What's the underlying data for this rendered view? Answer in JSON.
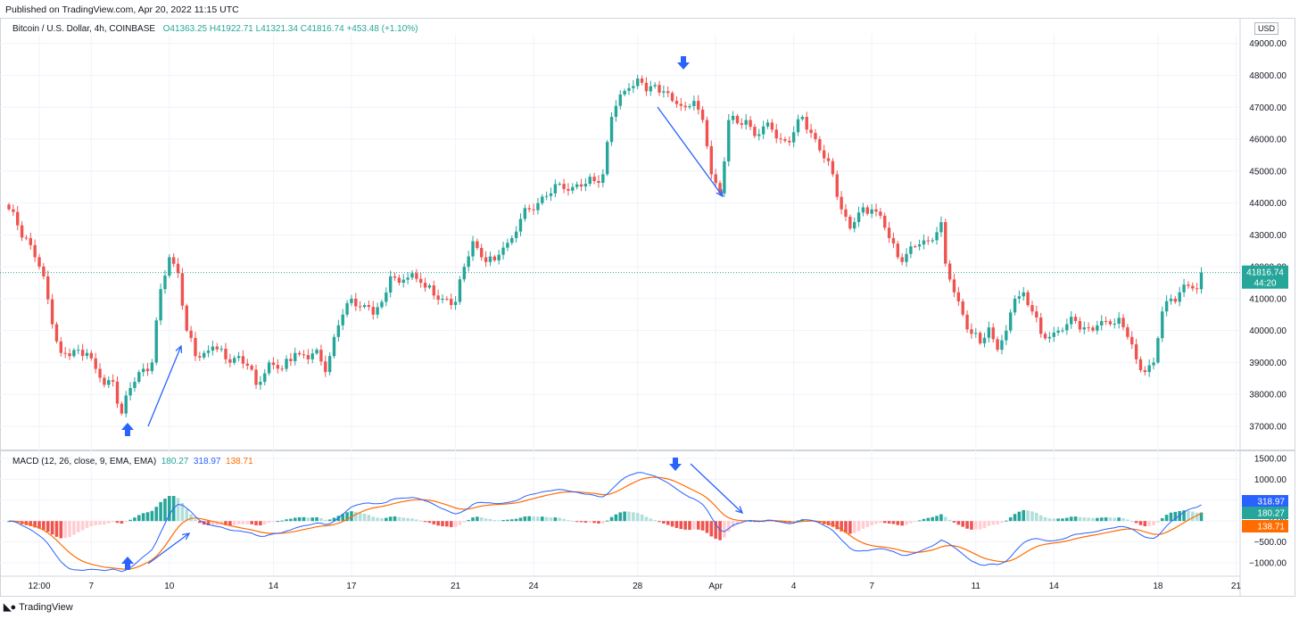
{
  "published": "Published on TradingView.com, Apr 20, 2022 11:15 UTC",
  "footer": {
    "brand": "TradingView"
  },
  "legend": {
    "symbol": "Bitcoin / U.S. Dollar, 4h, COINBASE",
    "o": "41363.25",
    "h": "41922.71",
    "l": "41321.34",
    "c": "41816.74",
    "change": "+453.48 (+1.10%)"
  },
  "macd_legend": {
    "title": "MACD (12, 26, close, 9, EMA, EMA)",
    "hist": "180.27",
    "macd": "318.97",
    "signal": "138.71"
  },
  "currency": "USD",
  "colors": {
    "up": "#26a69a",
    "down": "#ef5350",
    "macd": "#2962ff",
    "signal": "#ff6d00",
    "hist_up_light": "#b2dfdb",
    "hist_down_light": "#ffcdd2",
    "arrow": "#2962ff"
  },
  "chart_data": {
    "type": "candlestick",
    "price_axis": {
      "ticks": [
        37000,
        38000,
        39000,
        40000,
        41000,
        42000,
        43000,
        44000,
        45000,
        46000,
        47000,
        48000,
        49000
      ],
      "range": [
        36300,
        49300
      ]
    },
    "macd_axis": {
      "ticks": [
        -1000,
        -500,
        0,
        500,
        1000,
        1500
      ],
      "range": [
        -1300,
        1650
      ]
    },
    "x_ticks": [
      "12:00",
      "7",
      "10",
      "14",
      "17",
      "21",
      "24",
      "28",
      "Apr",
      "4",
      "7",
      "11",
      "14",
      "18",
      "21"
    ],
    "x_tick_bars": [
      7,
      19,
      37,
      61,
      79,
      103,
      121,
      145,
      163,
      181,
      199,
      223,
      241,
      265,
      283
    ],
    "last_price": {
      "value": "41816.74",
      "countdown": "44:20"
    },
    "price_anchors": [
      [
        0,
        43800
      ],
      [
        2,
        43300
      ],
      [
        4,
        42900
      ],
      [
        6,
        42300
      ],
      [
        8,
        41700
      ],
      [
        10,
        40200
      ],
      [
        12,
        39300
      ],
      [
        14,
        39200
      ],
      [
        16,
        39400
      ],
      [
        18,
        39300
      ],
      [
        20,
        38800
      ],
      [
        22,
        38300
      ],
      [
        24,
        38400
      ],
      [
        26,
        37400
      ],
      [
        28,
        38200
      ],
      [
        30,
        38700
      ],
      [
        33,
        39000
      ],
      [
        35,
        41300
      ],
      [
        37,
        42300
      ],
      [
        39,
        41800
      ],
      [
        41,
        40000
      ],
      [
        43,
        39200
      ],
      [
        45,
        39300
      ],
      [
        47,
        39500
      ],
      [
        50,
        39100
      ],
      [
        53,
        39200
      ],
      [
        55,
        38900
      ],
      [
        57,
        38300
      ],
      [
        60,
        39000
      ],
      [
        63,
        38800
      ],
      [
        66,
        39300
      ],
      [
        69,
        39100
      ],
      [
        71,
        39400
      ],
      [
        73,
        38700
      ],
      [
        75,
        39800
      ],
      [
        77,
        40500
      ],
      [
        79,
        41000
      ],
      [
        82,
        40800
      ],
      [
        84,
        40500
      ],
      [
        86,
        40900
      ],
      [
        88,
        41700
      ],
      [
        90,
        41500
      ],
      [
        93,
        41800
      ],
      [
        95,
        41500
      ],
      [
        98,
        41100
      ],
      [
        100,
        41000
      ],
      [
        103,
        40900
      ],
      [
        105,
        42000
      ],
      [
        107,
        42800
      ],
      [
        109,
        42300
      ],
      [
        112,
        42200
      ],
      [
        114,
        42600
      ],
      [
        116,
        42900
      ],
      [
        118,
        43500
      ],
      [
        120,
        43800
      ],
      [
        123,
        44200
      ],
      [
        125,
        44300
      ],
      [
        127,
        44600
      ],
      [
        130,
        44500
      ],
      [
        133,
        44600
      ],
      [
        137,
        44900
      ],
      [
        139,
        46700
      ],
      [
        141,
        47400
      ],
      [
        143,
        47600
      ],
      [
        145,
        47900
      ],
      [
        147,
        47500
      ],
      [
        149,
        47700
      ],
      [
        151,
        47500
      ],
      [
        153,
        47200
      ],
      [
        156,
        47000
      ],
      [
        158,
        47200
      ],
      [
        160,
        46600
      ],
      [
        162,
        44900
      ],
      [
        164,
        44300
      ],
      [
        166,
        46600
      ],
      [
        168,
        46500
      ],
      [
        170,
        46600
      ],
      [
        172,
        46100
      ],
      [
        174,
        46400
      ],
      [
        176,
        46300
      ],
      [
        178,
        46000
      ],
      [
        180,
        45900
      ],
      [
        183,
        46700
      ],
      [
        186,
        46000
      ],
      [
        188,
        45400
      ],
      [
        190,
        44900
      ],
      [
        192,
        43800
      ],
      [
        194,
        43200
      ],
      [
        196,
        43700
      ],
      [
        199,
        43800
      ],
      [
        201,
        43600
      ],
      [
        203,
        42900
      ],
      [
        205,
        42300
      ],
      [
        207,
        42400
      ],
      [
        210,
        42700
      ],
      [
        212,
        42800
      ],
      [
        215,
        43400
      ],
      [
        216,
        42100
      ],
      [
        218,
        41200
      ],
      [
        220,
        40500
      ],
      [
        222,
        39900
      ],
      [
        224,
        39600
      ],
      [
        226,
        40100
      ],
      [
        228,
        39400
      ],
      [
        230,
        40000
      ],
      [
        232,
        41000
      ],
      [
        234,
        41200
      ],
      [
        236,
        40600
      ],
      [
        238,
        39900
      ],
      [
        240,
        39800
      ],
      [
        242,
        40000
      ],
      [
        244,
        40200
      ],
      [
        246,
        40300
      ],
      [
        248,
        40100
      ],
      [
        250,
        40000
      ],
      [
        252,
        40300
      ],
      [
        254,
        40200
      ],
      [
        256,
        40400
      ],
      [
        258,
        39800
      ],
      [
        260,
        39100
      ],
      [
        262,
        38700
      ],
      [
        264,
        39000
      ],
      [
        266,
        40600
      ],
      [
        268,
        41000
      ],
      [
        270,
        41200
      ],
      [
        272,
        41400
      ],
      [
        274,
        41300
      ],
      [
        275,
        41816.74
      ]
    ]
  }
}
